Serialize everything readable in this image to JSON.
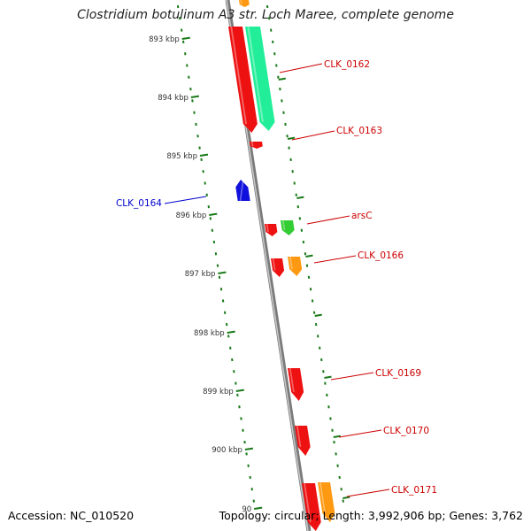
{
  "title": "Clostridium botulinum A3 str. Loch Maree, complete genome",
  "accession": "Accession: NC_010520",
  "topology": "Topology: circular; Length: 3,992,906 bp; Genes: 3,762",
  "scale_ticks": [
    "893 kbp",
    "894 kbp",
    "895 kbp",
    "896 kbp",
    "897 kbp",
    "898 kbp",
    "899 kbp",
    "900 kbp",
    "90"
  ],
  "gene_labels": [
    "CLK_0162",
    "CLK_0163",
    "CLK_0164",
    "arsC",
    "CLK_0166",
    "CLK_0169",
    "CLK_0170",
    "CLK_0171"
  ],
  "colors": {
    "backbone": "#8c8c8c",
    "tick": "#1a7a1a",
    "red_gene": "#ee1111",
    "green_gene": "#33cc33",
    "teal_gene": "#22ee99",
    "orange_gene": "#ff9911",
    "blue_gene": "#1111dd",
    "label_red": "#cc0000",
    "label_blue": "#0000cc"
  }
}
